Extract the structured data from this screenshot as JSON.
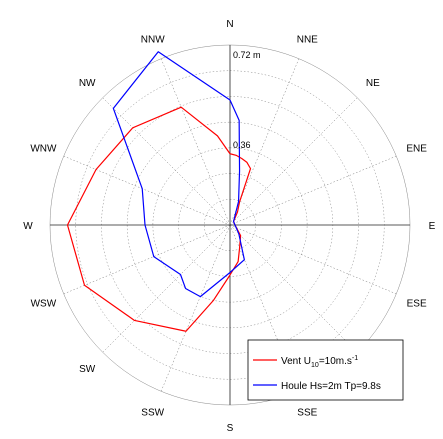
{
  "chart_data": {
    "type": "polar-line",
    "directions": [
      "N",
      "NNE",
      "NE",
      "ENE",
      "E",
      "ESE",
      "SE",
      "SSE",
      "S",
      "SSW",
      "SW",
      "WSW",
      "W",
      "WNW",
      "NW",
      "NNW"
    ],
    "direction_angles_deg": [
      0,
      22.5,
      45,
      67.5,
      90,
      112.5,
      135,
      157.5,
      180,
      202.5,
      225,
      247.5,
      270,
      292.5,
      315,
      337.5
    ],
    "radial_labels": [
      "0.72 m",
      "0.36"
    ],
    "radial_label_values": [
      0.72,
      0.36
    ],
    "r_max": 0.72,
    "ring_count": 7,
    "grid": true,
    "legend_position": "bottom-right",
    "series": [
      {
        "name": "Vent U10=10m.s-1",
        "color": "#ff0000",
        "points": [
          [
            0,
            0.285
          ],
          [
            5,
            0.28
          ],
          [
            10,
            0.27
          ],
          [
            15,
            0.26
          ],
          [
            20,
            0.24
          ],
          [
            22.5,
            0.1
          ],
          [
            30,
            0.06
          ],
          [
            45,
            0.02
          ],
          [
            90,
            0.02
          ],
          [
            135,
            0.06
          ],
          [
            157.5,
            0.1
          ],
          [
            167.5,
            0.15
          ],
          [
            180,
            0.2
          ],
          [
            192.5,
            0.31
          ],
          [
            202.5,
            0.46
          ],
          [
            225,
            0.54
          ],
          [
            247.5,
            0.63
          ],
          [
            270,
            0.65
          ],
          [
            292.5,
            0.58
          ],
          [
            315,
            0.55
          ],
          [
            337.5,
            0.51
          ],
          [
            352,
            0.36
          ],
          [
            0,
            0.285
          ]
        ]
      },
      {
        "name": "Houle Hs=2m Tp=9.8s",
        "color": "#0000ff",
        "points": [
          [
            0,
            0.5
          ],
          [
            5,
            0.42
          ],
          [
            10,
            0.22
          ],
          [
            20,
            0.1
          ],
          [
            45,
            0.02
          ],
          [
            90,
            0.02
          ],
          [
            135,
            0.05
          ],
          [
            157.5,
            0.15
          ],
          [
            180,
            0.19
          ],
          [
            202.5,
            0.31
          ],
          [
            215,
            0.31
          ],
          [
            225,
            0.28
          ],
          [
            247.5,
            0.33
          ],
          [
            270,
            0.34
          ],
          [
            292.5,
            0.38
          ],
          [
            315,
            0.66
          ],
          [
            337.5,
            0.75
          ],
          [
            0,
            0.5
          ]
        ]
      }
    ],
    "legend": {
      "entries": [
        {
          "text": "Vent U",
          "sub": "10",
          "mid": "=10m.s",
          "sup": "-1",
          "color": "#ff0000"
        },
        {
          "text": "Houle Hs=2m Tp=9.8s",
          "color": "#0000ff"
        }
      ]
    }
  }
}
